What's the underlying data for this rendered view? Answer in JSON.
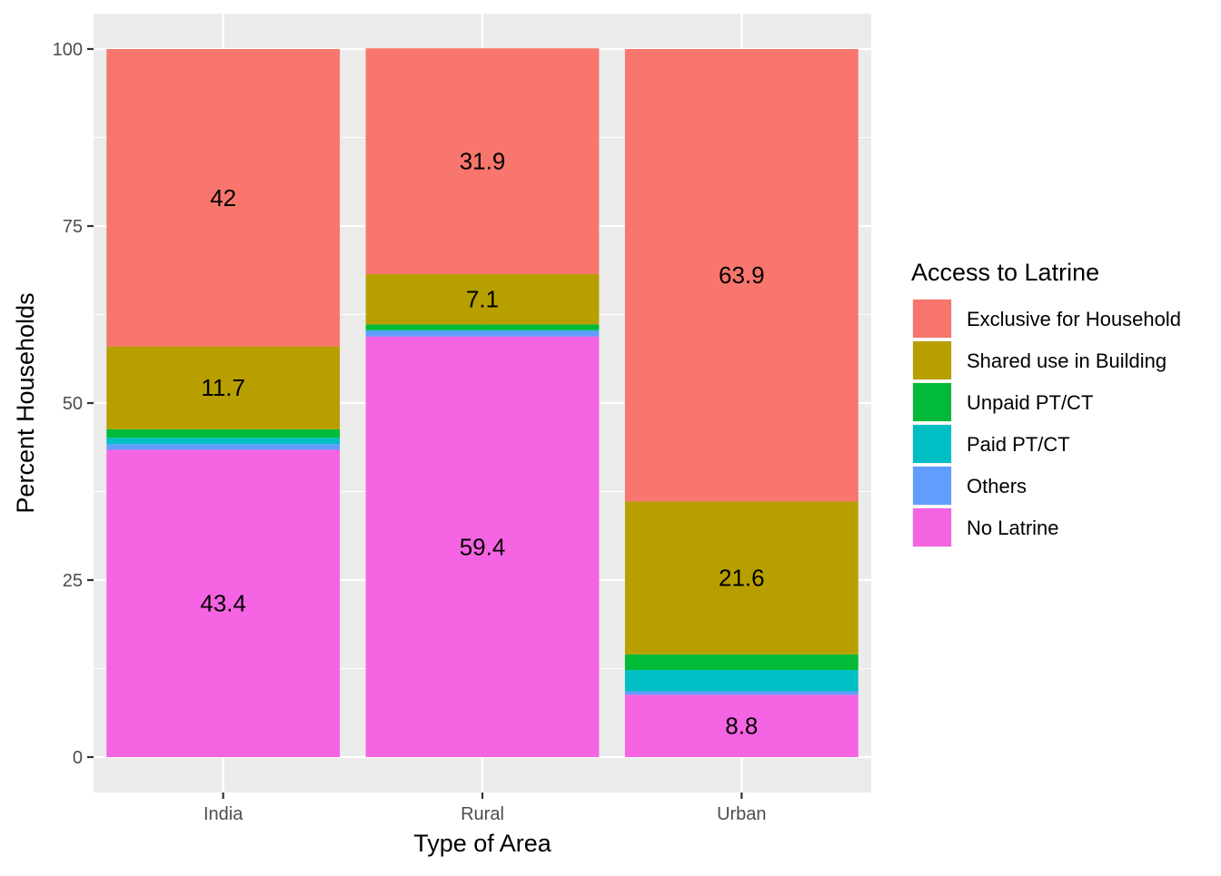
{
  "chart_data": {
    "type": "bar",
    "stacked": true,
    "categories": [
      "India",
      "Rural",
      "Urban"
    ],
    "xlabel": "Type of Area",
    "ylabel": "Percent Households",
    "ylim": [
      0,
      100
    ],
    "yticks": [
      0,
      25,
      50,
      75,
      100
    ],
    "grid": true,
    "legend": {
      "title": "Access to Latrine",
      "position": "right"
    },
    "series": [
      {
        "name": "No Latrine",
        "color": "#F564E3",
        "values": [
          43.4,
          59.4,
          8.8
        ],
        "labels": [
          "43.4",
          "59.4",
          "8.8"
        ]
      },
      {
        "name": "Others",
        "color": "#619CFF",
        "values": [
          0.8,
          0.8,
          0.5
        ],
        "labels": [
          "",
          "",
          ""
        ]
      },
      {
        "name": "Paid PT/CT",
        "color": "#00BFC4",
        "values": [
          0.9,
          0.1,
          3.0
        ],
        "labels": [
          "",
          "",
          ""
        ]
      },
      {
        "name": "Unpaid PT/CT",
        "color": "#00BA38",
        "values": [
          1.2,
          0.8,
          2.2
        ],
        "labels": [
          "",
          "",
          ""
        ]
      },
      {
        "name": "Shared use in Building",
        "color": "#B79F00",
        "values": [
          11.7,
          7.1,
          21.6
        ],
        "labels": [
          "11.7",
          "7.1",
          "21.6"
        ]
      },
      {
        "name": "Exclusive for Household",
        "color": "#F8766D",
        "values": [
          42.0,
          31.9,
          63.9
        ],
        "labels": [
          "42",
          "31.9",
          "63.9"
        ]
      }
    ],
    "legend_order": [
      "Exclusive for Household",
      "Shared use in Building",
      "Unpaid PT/CT",
      "Paid PT/CT",
      "Others",
      "No Latrine"
    ]
  }
}
